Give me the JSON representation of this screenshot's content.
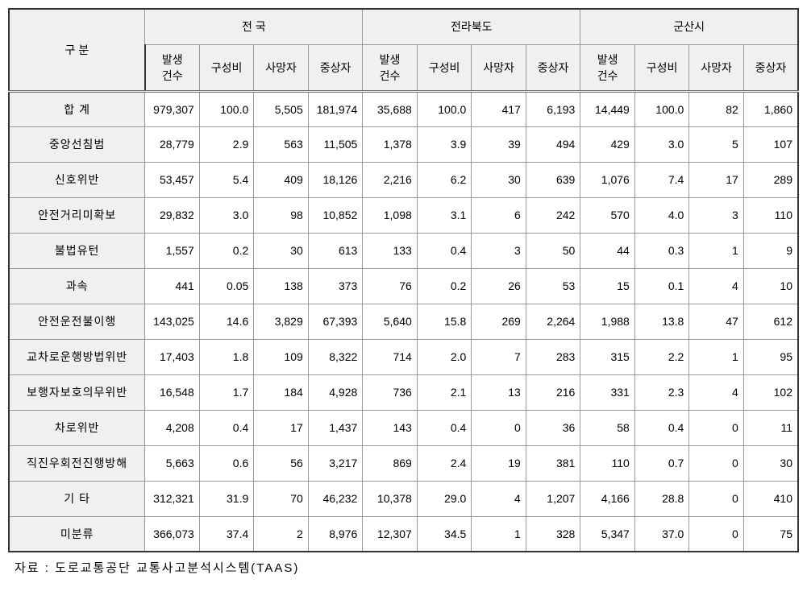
{
  "headers": {
    "category": "구 분",
    "regions": [
      "전 국",
      "전라북도",
      "군산시"
    ],
    "subcols": [
      "발생\n건수",
      "구성비",
      "사망자",
      "중상자"
    ]
  },
  "rows": [
    {
      "label": "합 계",
      "values": [
        "979,307",
        "100.0",
        "5,505",
        "181,974",
        "35,688",
        "100.0",
        "417",
        "6,193",
        "14,449",
        "100.0",
        "82",
        "1,860"
      ]
    },
    {
      "label": "중앙선침범",
      "values": [
        "28,779",
        "2.9",
        "563",
        "11,505",
        "1,378",
        "3.9",
        "39",
        "494",
        "429",
        "3.0",
        "5",
        "107"
      ]
    },
    {
      "label": "신호위반",
      "values": [
        "53,457",
        "5.4",
        "409",
        "18,126",
        "2,216",
        "6.2",
        "30",
        "639",
        "1,076",
        "7.4",
        "17",
        "289"
      ]
    },
    {
      "label": "안전거리미확보",
      "values": [
        "29,832",
        "3.0",
        "98",
        "10,852",
        "1,098",
        "3.1",
        "6",
        "242",
        "570",
        "4.0",
        "3",
        "110"
      ]
    },
    {
      "label": "불법유턴",
      "values": [
        "1,557",
        "0.2",
        "30",
        "613",
        "133",
        "0.4",
        "3",
        "50",
        "44",
        "0.3",
        "1",
        "9"
      ]
    },
    {
      "label": "과속",
      "values": [
        "441",
        "0.05",
        "138",
        "373",
        "76",
        "0.2",
        "26",
        "53",
        "15",
        "0.1",
        "4",
        "10"
      ]
    },
    {
      "label": "안전운전불이행",
      "values": [
        "143,025",
        "14.6",
        "3,829",
        "67,393",
        "5,640",
        "15.8",
        "269",
        "2,264",
        "1,988",
        "13.8",
        "47",
        "612"
      ]
    },
    {
      "label": "교차로운행방법위반",
      "values": [
        "17,403",
        "1.8",
        "109",
        "8,322",
        "714",
        "2.0",
        "7",
        "283",
        "315",
        "2.2",
        "1",
        "95"
      ]
    },
    {
      "label": "보행자보호의무위반",
      "values": [
        "16,548",
        "1.7",
        "184",
        "4,928",
        "736",
        "2.1",
        "13",
        "216",
        "331",
        "2.3",
        "4",
        "102"
      ]
    },
    {
      "label": "차로위반",
      "values": [
        "4,208",
        "0.4",
        "17",
        "1,437",
        "143",
        "0.4",
        "0",
        "36",
        "58",
        "0.4",
        "0",
        "11"
      ]
    },
    {
      "label": "직진우회전진행방해",
      "values": [
        "5,663",
        "0.6",
        "56",
        "3,217",
        "869",
        "2.4",
        "19",
        "381",
        "110",
        "0.7",
        "0",
        "30"
      ]
    },
    {
      "label": "기 타",
      "values": [
        "312,321",
        "31.9",
        "70",
        "46,232",
        "10,378",
        "29.0",
        "4",
        "1,207",
        "4,166",
        "28.8",
        "0",
        "410"
      ]
    },
    {
      "label": "미분류",
      "values": [
        "366,073",
        "37.4",
        "2",
        "8,976",
        "12,307",
        "34.5",
        "1",
        "328",
        "5,347",
        "37.0",
        "0",
        "75"
      ]
    }
  ],
  "source": "자료 : 도로교통공단 교통사고분석시스템(TAAS)"
}
